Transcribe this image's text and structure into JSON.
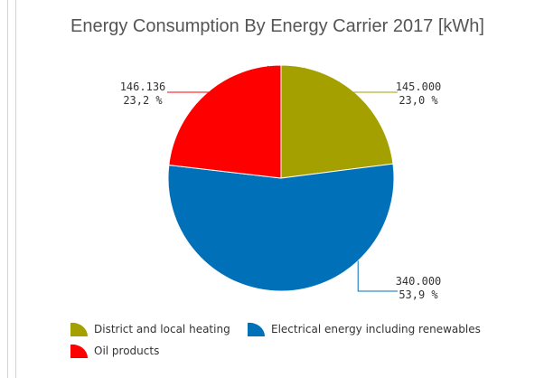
{
  "chart_data": {
    "type": "pie",
    "title": "Energy Consumption By Energy Carrier 2017 [kWh]",
    "slices": [
      {
        "name": "District and local heating",
        "value": 145000,
        "value_label": "145.000",
        "percent_label": "23,0 %",
        "color": "#a3a000"
      },
      {
        "name": "Electrical energy including renewables",
        "value": 340000,
        "value_label": "340.000",
        "percent_label": "53,9 %",
        "color": "#0070b8"
      },
      {
        "name": "Oil products",
        "value": 146136,
        "value_label": "146.136",
        "percent_label": "23,2 %",
        "color": "#ff0000"
      }
    ],
    "legend_position": "bottom"
  }
}
